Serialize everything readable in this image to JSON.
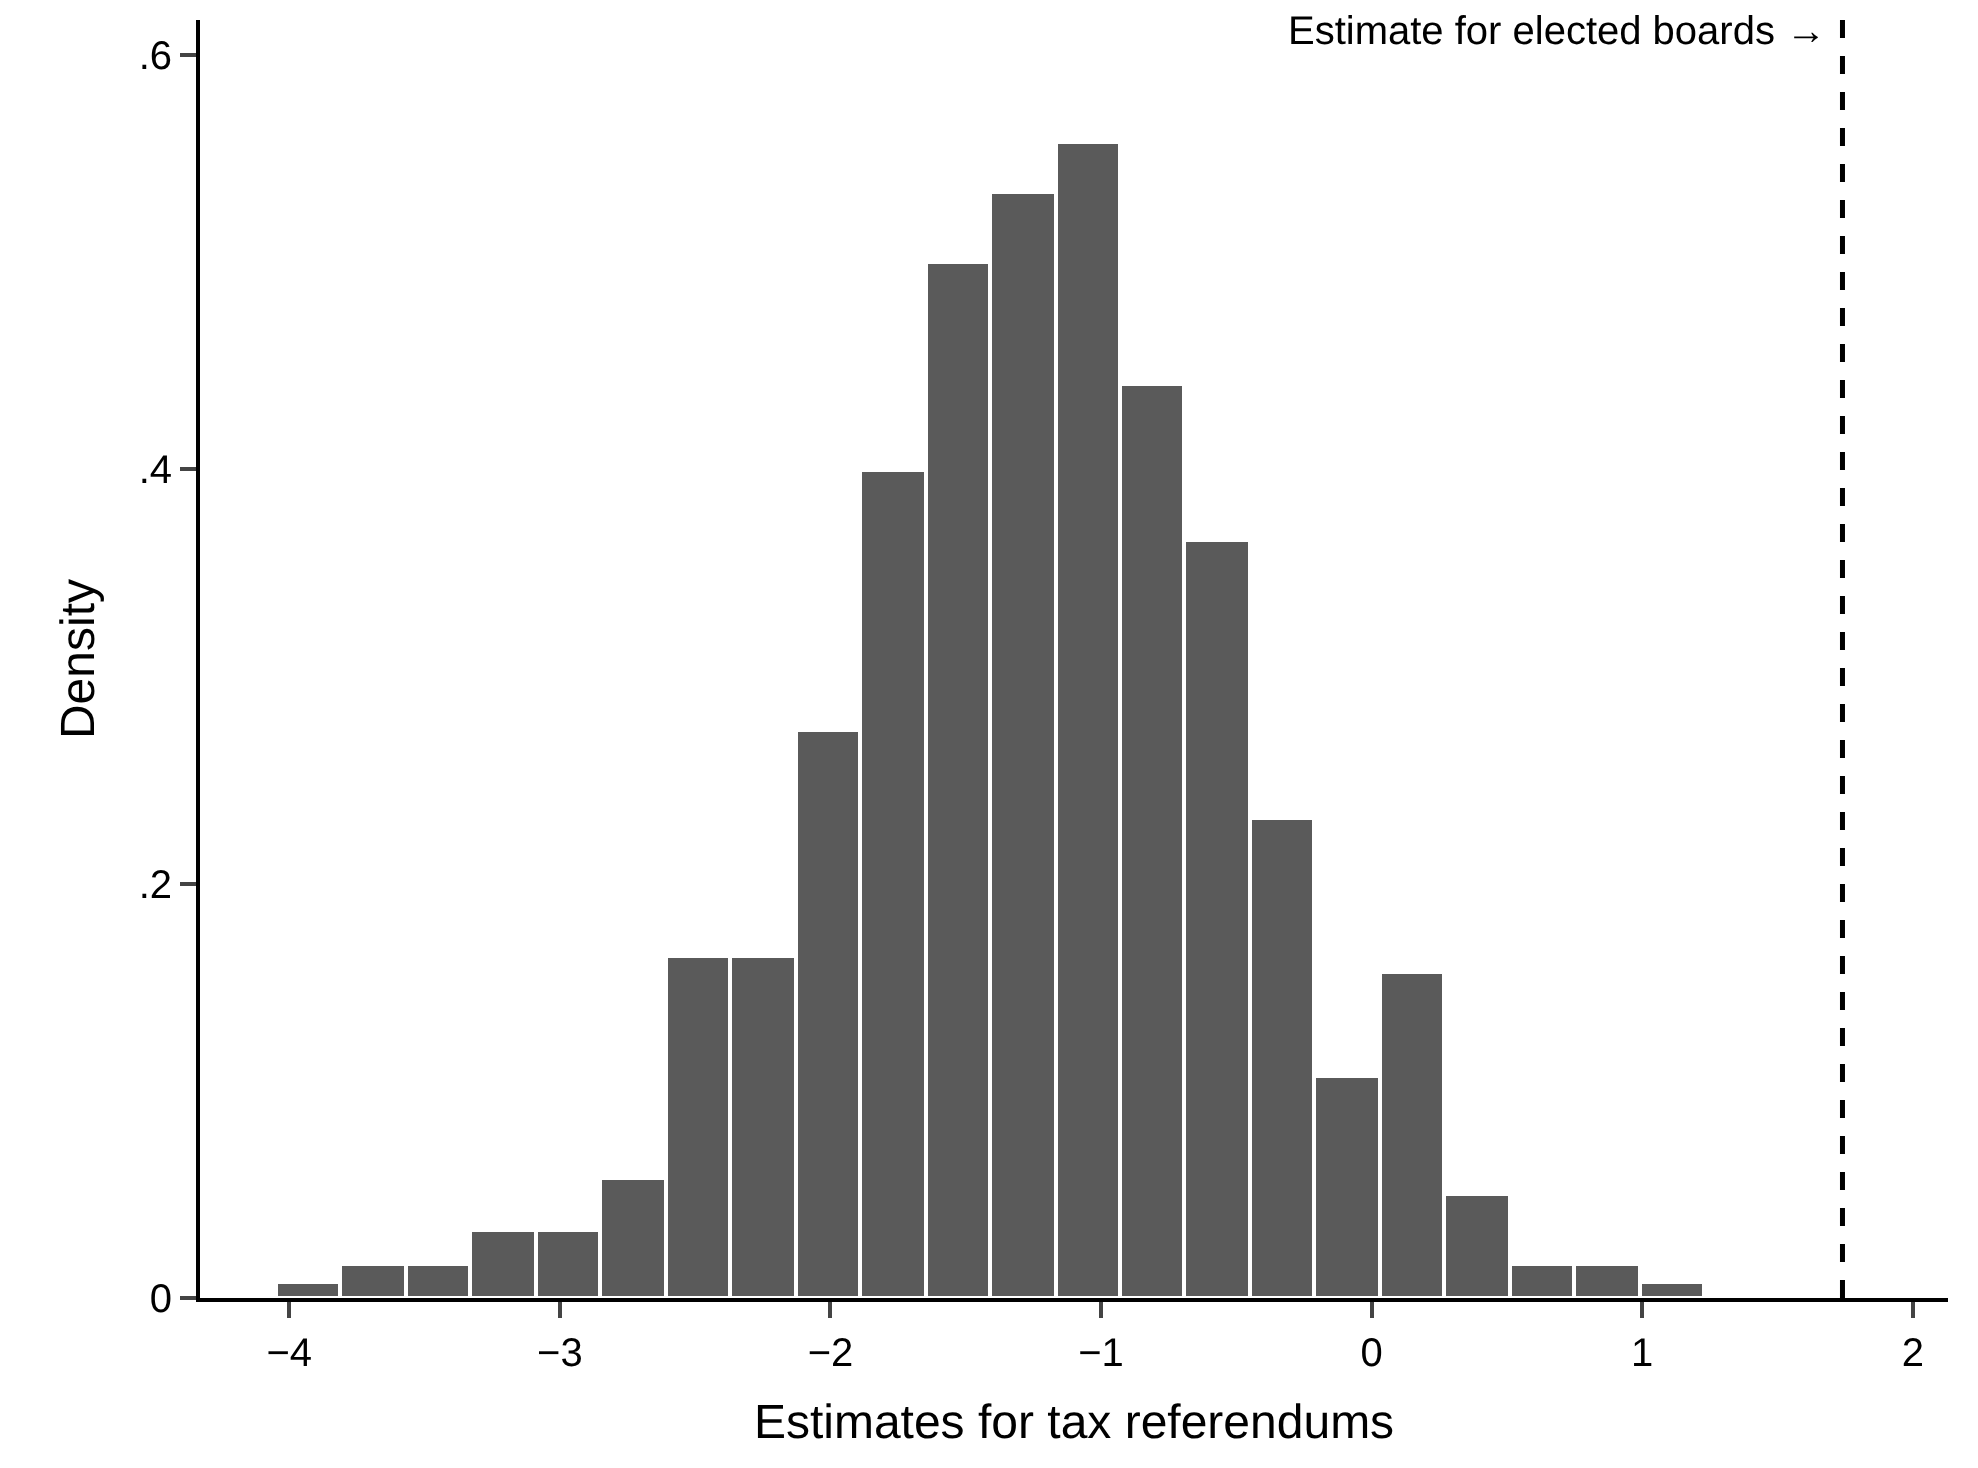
{
  "chart_data": {
    "type": "histogram",
    "xlabel": "Estimates for tax referendums",
    "ylabel": "Density",
    "bins": [
      -4.05,
      -3.81,
      -3.57,
      -3.33,
      -3.09,
      -2.85,
      -2.61,
      -2.37,
      -2.13,
      -1.89,
      -1.65,
      -1.41,
      -1.17,
      -0.93,
      -0.69,
      -0.45,
      -0.21,
      0.03,
      0.27,
      0.51,
      0.75,
      0.99,
      1.23
    ],
    "values": [
      0.008,
      0.016,
      0.016,
      0.033,
      0.033,
      0.058,
      0.165,
      0.165,
      0.274,
      0.4,
      0.5,
      0.534,
      0.558,
      0.441,
      0.366,
      0.232,
      0.107,
      0.157,
      0.05,
      0.016,
      0.016,
      0.008
    ],
    "color": "#5a5a5a",
    "xlim": [
      -4.33,
      2.13
    ],
    "xticks": [
      {
        "value": -4,
        "label": "−4"
      },
      {
        "value": -3,
        "label": "−3"
      },
      {
        "value": -2,
        "label": "−2"
      },
      {
        "value": -1,
        "label": "−1"
      },
      0,
      1,
      2
    ],
    "ylim": [
      0,
      0.617
    ],
    "yticks": [
      0,
      {
        "value": 0.2,
        "label": ".2"
      },
      {
        "value": 0.4,
        "label": ".4"
      },
      {
        "value": 0.6,
        "label": ".6"
      }
    ],
    "ref_lines": [
      {
        "axis": "x",
        "value": 1.74,
        "label": "Estimate for elected boards →",
        "color": "#000000",
        "line_style": "dashed"
      }
    ]
  }
}
